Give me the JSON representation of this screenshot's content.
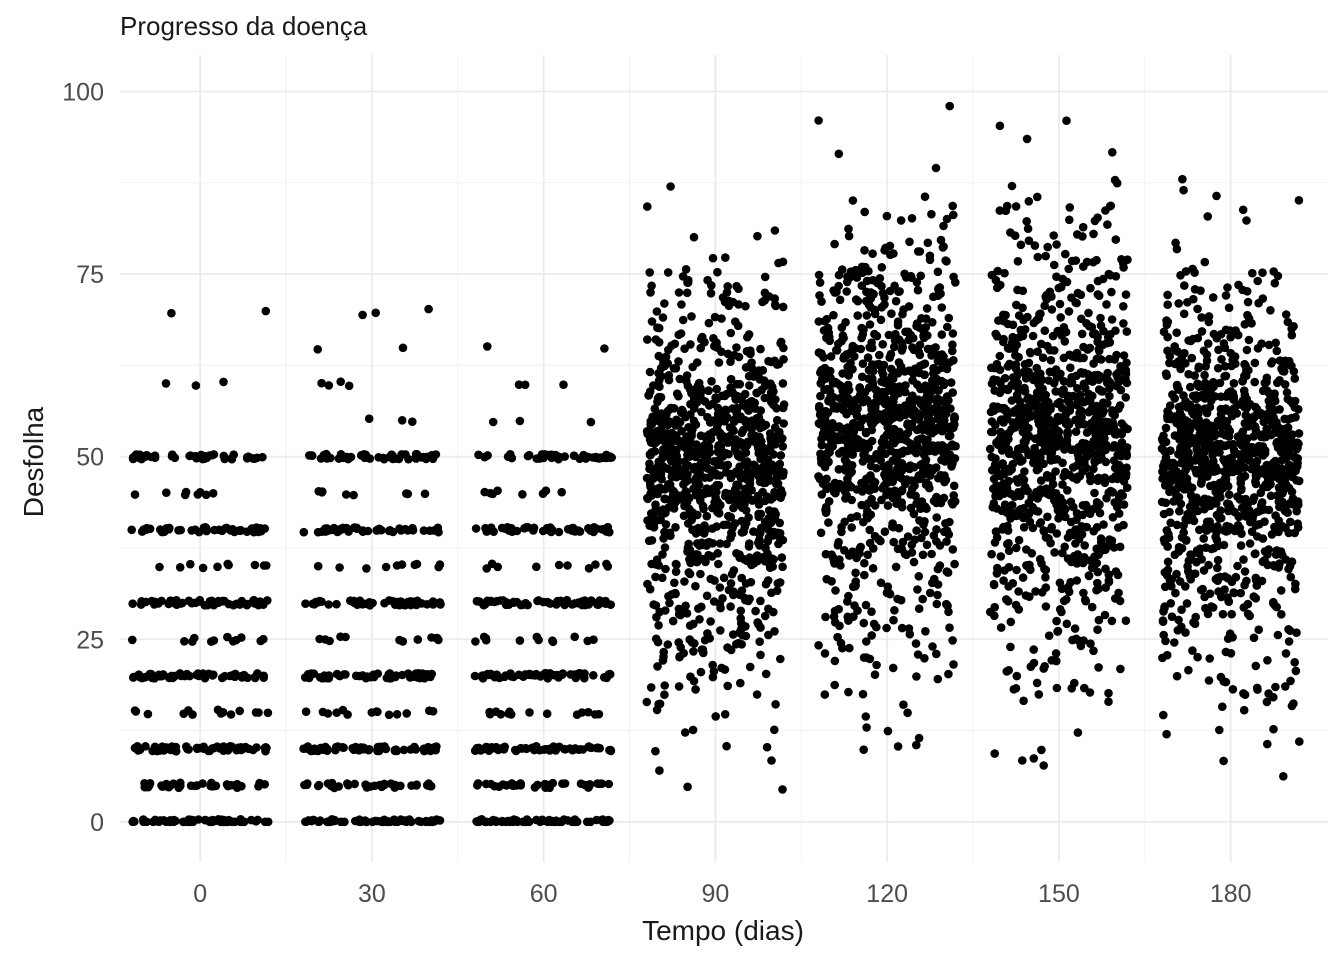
{
  "chart_data": {
    "type": "scatter",
    "title": "Progresso da doença",
    "xlabel": "Tempo (dias)",
    "ylabel": "Desfolha",
    "xlim": [
      -14,
      197
    ],
    "ylim": [
      -5.5,
      105
    ],
    "x_ticks": [
      0,
      30,
      60,
      90,
      120,
      150,
      180
    ],
    "y_ticks": [
      0,
      25,
      50,
      75,
      100
    ],
    "grid": true,
    "legend": "none",
    "point_color": "#000000",
    "jitter_width": 12,
    "groups": [
      {
        "x": 0,
        "levels": [
          0,
          5,
          10,
          15,
          20,
          25,
          30,
          35,
          40,
          45,
          50
        ],
        "counts": [
          70,
          35,
          60,
          14,
          55,
          12,
          55,
          10,
          45,
          8,
          45
        ],
        "extra_y": [
          60,
          60,
          60,
          70,
          69.5
        ]
      },
      {
        "x": 30,
        "levels": [
          0,
          5,
          10,
          15,
          20,
          25,
          30,
          35,
          40,
          45,
          50
        ],
        "counts": [
          70,
          35,
          60,
          14,
          55,
          12,
          55,
          10,
          45,
          8,
          45
        ],
        "extra_y": [
          55,
          55,
          55,
          60,
          60,
          60,
          60,
          65,
          65,
          70,
          70,
          69.5
        ]
      },
      {
        "x": 60,
        "levels": [
          0,
          5,
          10,
          15,
          20,
          25,
          30,
          35,
          40,
          45,
          50
        ],
        "counts": [
          70,
          35,
          60,
          14,
          55,
          12,
          55,
          10,
          45,
          8,
          45
        ],
        "extra_y": [
          55,
          55,
          55,
          60,
          60,
          60,
          65,
          65
        ]
      },
      {
        "x": 90,
        "y_range": [
          0,
          87
        ],
        "n": 1000
      },
      {
        "x": 120,
        "y_range": [
          0,
          98
        ],
        "n": 1000
      },
      {
        "x": 150,
        "y_range": [
          0,
          96
        ],
        "n": 1000
      },
      {
        "x": 180,
        "y_range": [
          0,
          88
        ],
        "n": 1000
      }
    ]
  }
}
